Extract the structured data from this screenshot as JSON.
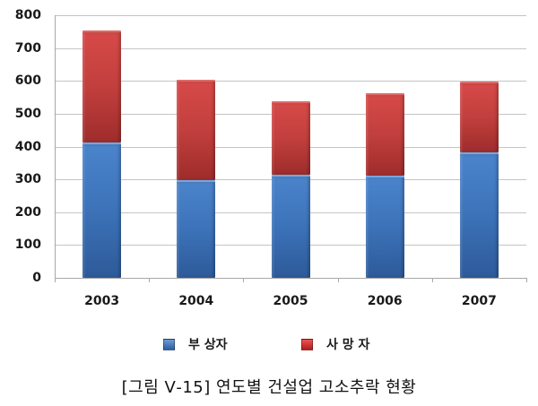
{
  "chart_data": {
    "type": "bar",
    "stacked": true,
    "title": "",
    "caption": "[그림 Ⅴ-15] 연도별 건설업 고소추락 현황",
    "xlabel": "",
    "ylabel": "",
    "categories": [
      "2003",
      "2004",
      "2005",
      "2006",
      "2007"
    ],
    "series": [
      {
        "name": "부 상자",
        "color": "#3c72b8",
        "values": [
          413,
          297,
          315,
          310,
          383
        ]
      },
      {
        "name": "사 망 자",
        "color": "#c13f3d",
        "values": [
          340,
          306,
          224,
          252,
          215
        ]
      }
    ],
    "totals": [
      753,
      603,
      539,
      562,
      598
    ],
    "ylim": [
      0,
      800
    ],
    "yticks": [
      "0",
      "100",
      "200",
      "300",
      "400",
      "500",
      "600",
      "700",
      "800"
    ],
    "grid": true,
    "legend_position": "bottom"
  },
  "legend": {
    "injured": "부 상자",
    "deaths": "사 망 자"
  },
  "caption": "[그림 Ⅴ-15] 연도별 건설업 고소추락 현황"
}
